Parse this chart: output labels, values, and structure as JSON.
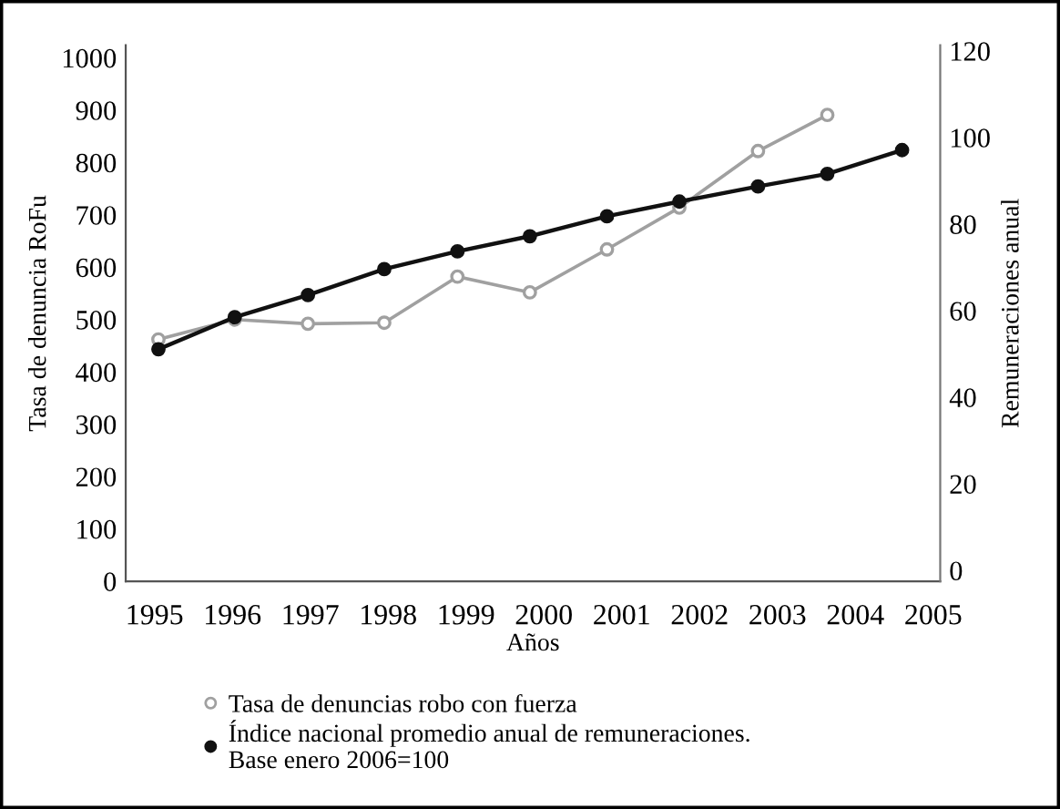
{
  "chart_data": {
    "type": "line",
    "xlabel": "Años",
    "ylabel": "Tasa de denuncia RoFu",
    "y2label": "Remuneraciones anual",
    "xlim": [
      1994.63,
      2005.09
    ],
    "xticks": [
      1995,
      1996,
      1997,
      1998,
      1999,
      2000,
      2001,
      2002,
      2003,
      2004,
      2005
    ],
    "ylim": [
      0,
      1024
    ],
    "yticks": [
      0,
      100,
      200,
      300,
      400,
      500,
      600,
      700,
      800,
      900,
      1000
    ],
    "y2lim": [
      -2.5,
      121.3
    ],
    "y2ticks": [
      0,
      20,
      40,
      60,
      80,
      100,
      120
    ],
    "grid": false,
    "legend": "bottom",
    "marker": "circle",
    "line_style": "solid",
    "series": [
      {
        "name": "Tasa de denuncias robo con fuerza",
        "color": "#a0a0a0",
        "x": [
          1995.05,
          1996.03,
          1996.97,
          1997.95,
          1998.89,
          1999.82,
          2000.81,
          2001.74,
          2002.75,
          2003.64
        ],
        "values": [
          462,
          500,
          492,
          494,
          582,
          552,
          634,
          714,
          822,
          891
        ]
      },
      {
        "name": "Índice nacional promedio anual de remuneraciones.\nBase enero 2006=100",
        "color": "#111111",
        "axis": "y2",
        "x": [
          1995.05,
          1996.03,
          1996.97,
          1997.95,
          1998.89,
          1999.82,
          2000.81,
          2001.74,
          2002.75,
          2003.64,
          2004.6
        ],
        "values": [
          51.1,
          58.5,
          63.6,
          69.6,
          73.7,
          77.2,
          81.8,
          85.2,
          88.7,
          91.6,
          97.1
        ]
      }
    ]
  }
}
